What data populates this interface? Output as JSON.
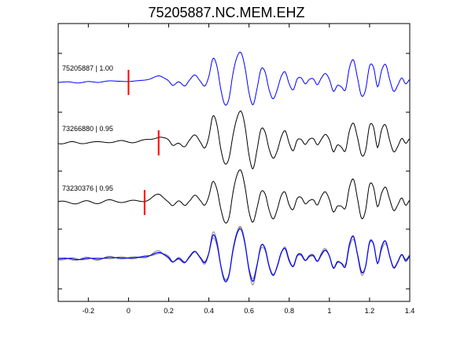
{
  "chart_data": {
    "type": "line",
    "title": "75205887.NC.MEM.EHZ",
    "xlabel": "",
    "ylabel": "",
    "xlim": [
      -0.35,
      1.4
    ],
    "xticks": [
      -0.2,
      0,
      0.2,
      0.4,
      0.6,
      0.8,
      1,
      1.2,
      1.4
    ],
    "xtick_labels": [
      "-0.2",
      "0",
      "0.2",
      "0.4",
      "0.6",
      "0.8",
      "1",
      "1.2",
      "1.4"
    ],
    "grid": false,
    "colors": {
      "reference": "#0000ff",
      "other": "#000000",
      "overlay_other": "#888888",
      "pick": "#ff0000"
    },
    "traces": [
      {
        "label": "75205887 | 1.00",
        "pick_time": 0.0,
        "shift": 0.0,
        "color": "#0000ff"
      },
      {
        "label": "73266880 | 0.95",
        "pick_time": 0.15,
        "shift": 0.0,
        "color": "#000000"
      },
      {
        "label": "73230376 | 0.95",
        "pick_time": 0.08,
        "shift": 0.0,
        "color": "#000000"
      }
    ],
    "stack_label": "",
    "waveform": {
      "x": [
        -0.35,
        -0.3,
        -0.25,
        -0.2,
        -0.15,
        -0.1,
        -0.05,
        0.0,
        0.05,
        0.1,
        0.15,
        0.18,
        0.2,
        0.22,
        0.25,
        0.28,
        0.3,
        0.33,
        0.36,
        0.38,
        0.4,
        0.42,
        0.44,
        0.46,
        0.48,
        0.5,
        0.52,
        0.54,
        0.56,
        0.58,
        0.6,
        0.62,
        0.64,
        0.66,
        0.68,
        0.7,
        0.72,
        0.74,
        0.76,
        0.78,
        0.8,
        0.82,
        0.84,
        0.86,
        0.88,
        0.9,
        0.92,
        0.94,
        0.96,
        0.98,
        1.0,
        1.02,
        1.04,
        1.06,
        1.08,
        1.1,
        1.12,
        1.14,
        1.16,
        1.18,
        1.2,
        1.22,
        1.24,
        1.26,
        1.28,
        1.3,
        1.32,
        1.34,
        1.36,
        1.38,
        1.4
      ],
      "y": [
        0.0,
        0.02,
        -0.02,
        0.03,
        0.0,
        0.05,
        0.04,
        0.03,
        0.06,
        0.1,
        0.22,
        0.14,
        0.05,
        -0.1,
        0.02,
        -0.12,
        0.05,
        0.25,
        0.02,
        -0.12,
        0.2,
        0.8,
        0.55,
        -0.25,
        -0.75,
        -0.55,
        0.3,
        0.85,
        1.0,
        0.5,
        -0.35,
        -0.75,
        -0.2,
        0.45,
        0.35,
        -0.25,
        -0.55,
        -0.25,
        0.2,
        0.35,
        -0.05,
        -0.25,
        0.12,
        0.15,
        -0.05,
        0.1,
        0.12,
        -0.08,
        0.15,
        0.3,
        0.1,
        -0.3,
        -0.1,
        -0.15,
        -0.25,
        0.5,
        0.75,
        0.15,
        -0.45,
        -0.25,
        0.55,
        0.5,
        -0.15,
        0.4,
        0.6,
        0.1,
        -0.3,
        -0.1,
        0.15,
        -0.05,
        0.1
      ]
    }
  }
}
